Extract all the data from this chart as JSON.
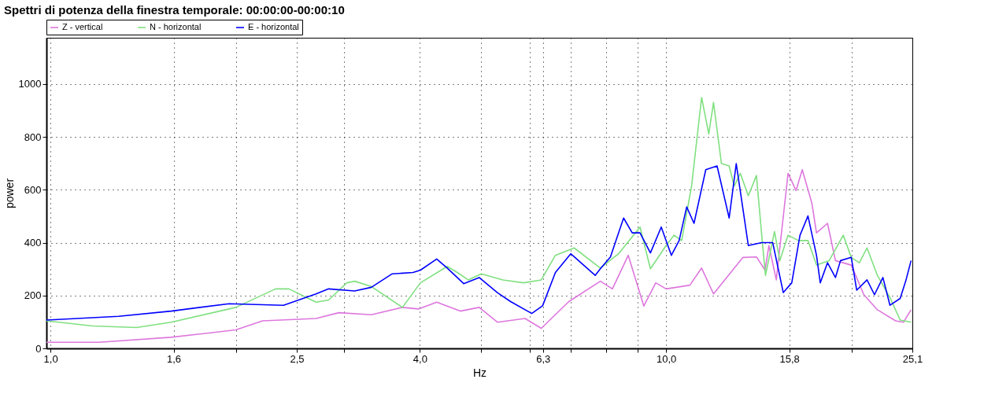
{
  "chart_data": {
    "type": "line",
    "title": "Spettri di potenza della finestra temporale: 00:00:00-00:00:10",
    "xlabel": "Hz",
    "ylabel": "power",
    "log": "x",
    "xlim": [
      0.985,
      25.12
    ],
    "ylim": [
      0,
      1175
    ],
    "xticks": [
      {
        "value": 1.0,
        "label": "1,0"
      },
      {
        "value": 1.585,
        "label": "1,6"
      },
      {
        "value": 2,
        "label": null
      },
      {
        "value": 2.512,
        "label": "2,5"
      },
      {
        "value": 3,
        "label": null
      },
      {
        "value": 3.981,
        "label": "4,0"
      },
      {
        "value": 5,
        "label": null
      },
      {
        "value": 6,
        "label": null
      },
      {
        "value": 6.31,
        "label": "6,3"
      },
      {
        "value": 7,
        "label": null
      },
      {
        "value": 8,
        "label": null
      },
      {
        "value": 9,
        "label": null
      },
      {
        "value": 10,
        "label": "10,0"
      },
      {
        "value": 15.85,
        "label": "15,8"
      },
      {
        "value": 20,
        "label": null
      },
      {
        "value": 25.12,
        "label": "25,1"
      }
    ],
    "yticks": [
      0,
      200,
      400,
      600,
      800,
      1000
    ],
    "grid": true,
    "legend": "top",
    "line_style": "solid",
    "marker": "none",
    "series": [
      {
        "name": "Z - vertical",
        "color": "#dd77dd",
        "x": [
          0.985,
          1.2,
          1.57,
          2.0,
          2.21,
          2.7,
          2.94,
          3.32,
          3.73,
          3.96,
          4.24,
          4.63,
          4.97,
          5.32,
          5.9,
          6.27,
          6.95,
          7.82,
          8.18,
          8.68,
          9.2,
          9.62,
          10.0,
          10.93,
          11.42,
          11.94,
          13.33,
          14.02,
          14.48,
          14.69,
          15.1,
          15.78,
          16.26,
          16.64,
          17.25,
          17.55,
          18.29,
          18.84,
          19.99,
          20.95,
          22.04,
          23.59,
          24.3,
          25.0
        ],
        "values": [
          23,
          23,
          42,
          70,
          104,
          113,
          135,
          127,
          155,
          149,
          175,
          141,
          155,
          99,
          113,
          76,
          177,
          254,
          225,
          352,
          160,
          248,
          225,
          239,
          304,
          206,
          344,
          346,
          296,
          389,
          259,
          662,
          597,
          676,
          549,
          437,
          473,
          332,
          315,
          203,
          146,
          104,
          99,
          146
        ]
      },
      {
        "name": "N - horizontal",
        "color": "#80e080",
        "x": [
          0.985,
          1.17,
          1.38,
          1.57,
          2.0,
          2.32,
          2.44,
          2.7,
          2.83,
          3.03,
          3.12,
          3.32,
          3.73,
          3.99,
          4.41,
          4.58,
          4.77,
          5.01,
          5.43,
          5.87,
          6.27,
          6.61,
          7.09,
          7.82,
          8.37,
          9.07,
          9.43,
          10.0,
          10.3,
          10.6,
          11.0,
          11.42,
          11.73,
          11.94,
          12.3,
          12.66,
          12.9,
          13.2,
          13.6,
          14.02,
          14.3,
          14.5,
          15.0,
          15.3,
          15.78,
          16.4,
          17.0,
          17.55,
          18.4,
          19.4,
          19.99,
          20.6,
          21.2,
          22.04,
          23.1,
          24.0,
          25.0
        ],
        "values": [
          104,
          85,
          79,
          99,
          155,
          225,
          225,
          175,
          183,
          248,
          254,
          234,
          155,
          248,
          310,
          287,
          259,
          282,
          259,
          248,
          259,
          352,
          380,
          304,
          358,
          459,
          301,
          389,
          428,
          408,
          614,
          949,
          811,
          930,
          699,
          690,
          614,
          662,
          577,
          654,
          428,
          276,
          442,
          332,
          428,
          408,
          408,
          315,
          332,
          428,
          344,
          324,
          380,
          276,
          192,
          107,
          99
        ]
      },
      {
        "name": "E - horizontal",
        "color": "#0000ff",
        "x": [
          0.985,
          1.29,
          1.57,
          1.95,
          2.39,
          2.7,
          2.83,
          3.12,
          3.32,
          3.59,
          3.88,
          3.99,
          4.24,
          4.41,
          4.69,
          4.97,
          5.32,
          5.59,
          6.05,
          6.3,
          6.61,
          7.0,
          7.67,
          7.82,
          8.12,
          8.53,
          8.81,
          9.07,
          9.43,
          9.82,
          10.2,
          10.5,
          10.8,
          11.1,
          11.6,
          12.1,
          12.66,
          13.0,
          13.6,
          14.3,
          14.9,
          15.5,
          16.0,
          16.5,
          17.0,
          17.55,
          17.8,
          18.29,
          18.84,
          19.2,
          19.99,
          20.4,
          21.2,
          21.8,
          22.5,
          23.1,
          24.0,
          24.5,
          25.0
        ],
        "values": [
          107,
          121,
          141,
          169,
          163,
          206,
          225,
          217,
          231,
          282,
          287,
          296,
          338,
          304,
          245,
          268,
          211,
          177,
          132,
          161,
          287,
          358,
          276,
          301,
          346,
          493,
          437,
          437,
          361,
          459,
          352,
          408,
          535,
          473,
          676,
          690,
          493,
          699,
          389,
          400,
          400,
          211,
          248,
          428,
          501,
          352,
          248,
          324,
          268,
          332,
          344,
          220,
          259,
          203,
          268,
          163,
          189,
          254,
          332
        ]
      }
    ]
  }
}
